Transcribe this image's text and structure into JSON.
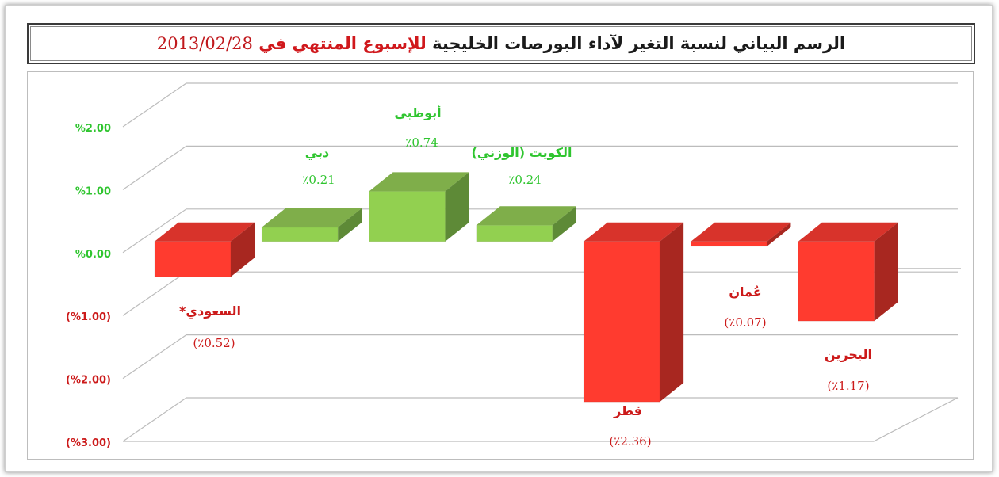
{
  "title": {
    "part1": "الرسم البياني لنسبة التغير لآداء البورصات الخليجية",
    "part2": "للإسبوع المنتهي في",
    "date": "2013/02/28"
  },
  "chart_data": {
    "type": "bar",
    "categories": [
      "السعودي*",
      "دبي",
      "أبوظبي",
      "الكويت (الوزني)",
      "قطر",
      "عُمان",
      "البحرين"
    ],
    "values": [
      -0.52,
      0.21,
      0.74,
      0.24,
      -2.36,
      -0.07,
      -1.17
    ],
    "value_labels": [
      "(٪0.52)",
      "٪0.21",
      "٪0.74",
      "٪0.24",
      "(٪2.36)",
      "(٪0.07)",
      "(٪1.17)"
    ],
    "ylim": [
      -3,
      2
    ],
    "y_ticks": [
      2,
      1,
      0,
      -1,
      -2,
      -3
    ],
    "y_tick_labels": [
      "%2.00",
      "%1.00",
      "%0.00",
      "(%1.00)",
      "(%2.00)",
      "(%3.00)"
    ],
    "grid": true,
    "colors": {
      "positive_front": "#92d050",
      "positive_top": "#7fae4a",
      "positive_side": "#5e8a37",
      "negative_front": "#ff3b2f",
      "negative_top": "#d8332b",
      "negative_side": "#a82720",
      "positive_text": "#2fc52f",
      "negative_text": "#cc1a1a",
      "grid": "#bcbcbc"
    }
  }
}
